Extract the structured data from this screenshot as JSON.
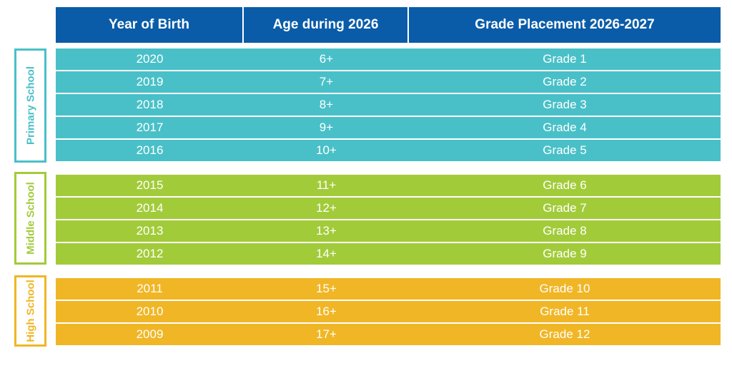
{
  "headers": {
    "year": "Year of Birth",
    "age": "Age during 2026",
    "grade": "Grade Placement 2026-2027"
  },
  "sections": {
    "primary": "Primary School",
    "middle": "Middle School",
    "high": "High School"
  },
  "colors": {
    "header": "#0a5ca8",
    "primary": "#49c0c8",
    "middle": "#a2cb3a",
    "high": "#f0b625"
  },
  "rows": [
    {
      "year": "2020",
      "age": "6+",
      "grade": "Grade 1"
    },
    {
      "year": "2019",
      "age": "7+",
      "grade": "Grade 2"
    },
    {
      "year": "2018",
      "age": "8+",
      "grade": "Grade 3"
    },
    {
      "year": "2017",
      "age": "9+",
      "grade": "Grade 4"
    },
    {
      "year": "2016",
      "age": "10+",
      "grade": "Grade 5"
    },
    {
      "year": "2015",
      "age": "11+",
      "grade": "Grade 6"
    },
    {
      "year": "2014",
      "age": "12+",
      "grade": "Grade 7"
    },
    {
      "year": "2013",
      "age": "13+",
      "grade": "Grade 8"
    },
    {
      "year": "2012",
      "age": "14+",
      "grade": "Grade 9"
    },
    {
      "year": "2011",
      "age": "15+",
      "grade": "Grade 10"
    },
    {
      "year": "2010",
      "age": "16+",
      "grade": "Grade 11"
    },
    {
      "year": "2009",
      "age": "17+",
      "grade": "Grade 12"
    }
  ]
}
